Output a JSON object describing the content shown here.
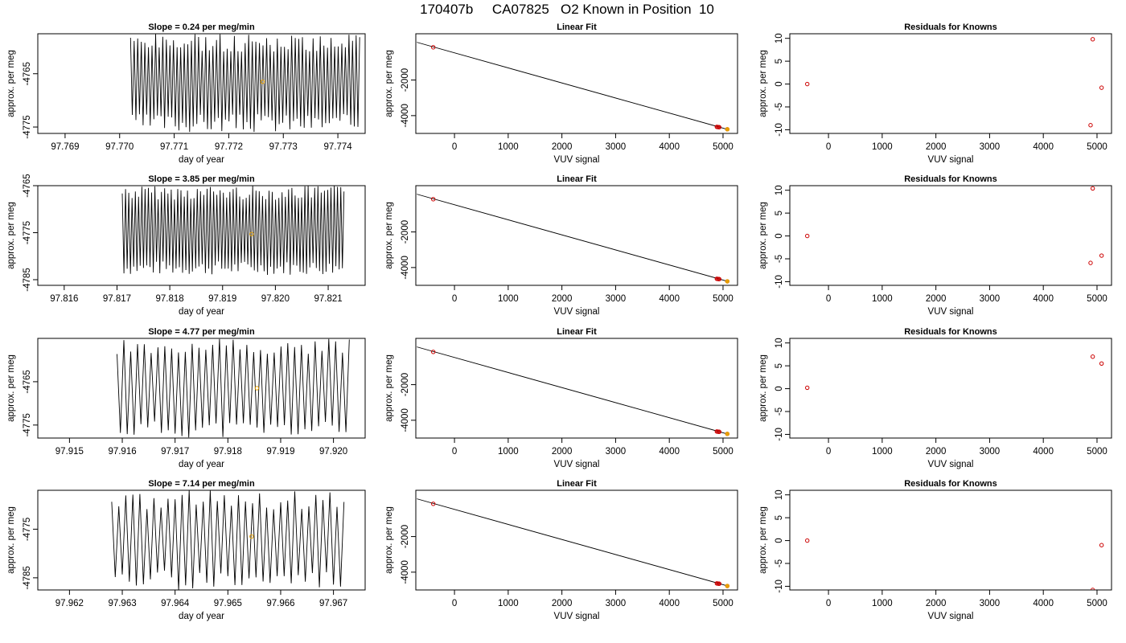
{
  "figure_title": "170407b     CA07825   O2 Known in Position  10",
  "chart_data": [
    {
      "type": "line",
      "row": 0,
      "col": 0,
      "title": "Slope =  0.24  per meg/min",
      "xlabel": "day of year",
      "ylabel": "approx. per meg",
      "xlim": [
        97.7685,
        97.7745
      ],
      "ylim": [
        -4776.2,
        -4757.5
      ],
      "xticks": [
        97.769,
        97.77,
        97.771,
        97.772,
        97.773,
        97.774
      ],
      "xtick_labels": [
        "97.769",
        "97.770",
        "97.771",
        "97.772",
        "97.773",
        "97.774"
      ],
      "yticks": [
        -4765,
        -4775
      ],
      "ytick_labels": [
        "-4765",
        "-4775"
      ],
      "x_start": 97.7702,
      "x_end": 97.7744,
      "cycles": 64,
      "y_high": -4757.5,
      "y_low": -4776,
      "y_spread": 3.5,
      "seed": 3,
      "highlight_point": {
        "x": 97.77262,
        "y": -4766.5,
        "color": "#e69f00"
      }
    },
    {
      "type": "line",
      "row": 1,
      "col": 0,
      "title": "Slope =  3.85  per meg/min",
      "xlabel": "day of year",
      "ylabel": "approx. per meg",
      "xlim": [
        97.8155,
        97.8217
      ],
      "ylim": [
        -4786.2,
        -4765
      ],
      "xticks": [
        97.816,
        97.817,
        97.818,
        97.819,
        97.82,
        97.821
      ],
      "xtick_labels": [
        "97.816",
        "97.817",
        "97.818",
        "97.819",
        "97.820",
        "97.821"
      ],
      "yticks": [
        -4765,
        -4775,
        -4785
      ],
      "ytick_labels": [
        "-4765",
        "-4775",
        "-4785"
      ],
      "x_start": 97.8171,
      "x_end": 97.8213,
      "cycles": 68,
      "y_high": -4765,
      "y_low": -4784,
      "y_spread": 3,
      "seed": 7,
      "highlight_point": {
        "x": 97.81955,
        "y": -4775.3,
        "color": "#e69f00"
      }
    },
    {
      "type": "line",
      "row": 2,
      "col": 0,
      "title": "Slope =  4.77  per meg/min",
      "xlabel": "day of year",
      "ylabel": "approx. per meg",
      "xlim": [
        97.9144,
        97.9206
      ],
      "ylim": [
        -4778,
        -4755
      ],
      "xticks": [
        97.915,
        97.916,
        97.917,
        97.918,
        97.919,
        97.92
      ],
      "xtick_labels": [
        "97.915",
        "97.916",
        "97.917",
        "97.918",
        "97.919",
        "97.920"
      ],
      "yticks": [
        -4765,
        -4775
      ],
      "ytick_labels": [
        "-4765",
        "-4775"
      ],
      "x_start": 97.9159,
      "x_end": 97.9203,
      "cycles": 34,
      "y_high": -4755,
      "y_low": -4778,
      "y_spread": 4,
      "seed": 11,
      "highlight_point": {
        "x": 97.91855,
        "y": -4766.5,
        "color": "#e69f00"
      }
    },
    {
      "type": "line",
      "row": 3,
      "col": 0,
      "title": "Slope =  7.14  per meg/min",
      "xlabel": "day of year",
      "ylabel": "approx. per meg",
      "xlim": [
        97.9614,
        97.9676
      ],
      "ylim": [
        -4787.5,
        -4767
      ],
      "xticks": [
        97.962,
        97.963,
        97.964,
        97.965,
        97.966,
        97.967
      ],
      "xtick_labels": [
        "97.962",
        "97.963",
        "97.964",
        "97.965",
        "97.966",
        "97.967"
      ],
      "yticks": [
        -4775,
        -4785
      ],
      "ytick_labels": [
        "-4775",
        "-4785"
      ],
      "x_start": 97.9628,
      "x_end": 97.9672,
      "cycles": 33,
      "y_high": -4767,
      "y_low": -4787.5,
      "y_spread": 4,
      "seed": 19,
      "highlight_point": {
        "x": 97.96545,
        "y": -4776.5,
        "color": "#e69f00"
      }
    },
    {
      "type": "scatter",
      "row": 0,
      "col": 1,
      "title": "Linear Fit",
      "xlabel": "VUV signal",
      "ylabel": "approx. per meg",
      "xlim": [
        -720,
        5270
      ],
      "ylim": [
        -5000,
        600
      ],
      "xticks": [
        0,
        1000,
        2000,
        3000,
        4000,
        5000
      ],
      "xtick_labels": [
        "0",
        "1000",
        "2000",
        "3000",
        "4000",
        "5000"
      ],
      "yticks": [
        -2000,
        -4000
      ],
      "ytick_labels": [
        "-2000",
        "-4000"
      ],
      "fit_line": [
        [
          -700,
          120
        ],
        [
          5080,
          -4770
        ]
      ],
      "points": [
        [
          -395,
          -160
        ],
        [
          4885,
          -4630
        ],
        [
          4900,
          -4640
        ],
        [
          4920,
          -4645
        ],
        [
          4930,
          -4650
        ],
        [
          5080,
          -4765
        ]
      ],
      "unknown_point": [
        5080,
        -4765
      ],
      "point_color": "#cc0000",
      "unknown_color": "#e69f00"
    },
    {
      "type": "scatter",
      "row": 1,
      "col": 1,
      "title": "Linear Fit",
      "xlabel": "VUV signal",
      "ylabel": "approx. per meg",
      "xlim": [
        -720,
        5270
      ],
      "ylim": [
        -5000,
        600
      ],
      "xticks": [
        0,
        1000,
        2000,
        3000,
        4000,
        5000
      ],
      "xtick_labels": [
        "0",
        "1000",
        "2000",
        "3000",
        "4000",
        "5000"
      ],
      "yticks": [
        -2000,
        -4000
      ],
      "ytick_labels": [
        "-2000",
        "-4000"
      ],
      "fit_line": [
        [
          -700,
          120
        ],
        [
          5080,
          -4770
        ]
      ],
      "points": [
        [
          -395,
          -160
        ],
        [
          4885,
          -4630
        ],
        [
          4900,
          -4640
        ],
        [
          4920,
          -4645
        ],
        [
          4930,
          -4650
        ],
        [
          5080,
          -4775
        ]
      ],
      "unknown_point": [
        5080,
        -4775
      ],
      "point_color": "#cc0000",
      "unknown_color": "#e69f00"
    },
    {
      "type": "scatter",
      "row": 2,
      "col": 1,
      "title": "Linear Fit",
      "xlabel": "VUV signal",
      "ylabel": "approx. per meg",
      "xlim": [
        -720,
        5270
      ],
      "ylim": [
        -5000,
        600
      ],
      "xticks": [
        0,
        1000,
        2000,
        3000,
        4000,
        5000
      ],
      "xtick_labels": [
        "0",
        "1000",
        "2000",
        "3000",
        "4000",
        "5000"
      ],
      "yticks": [
        -2000,
        -4000
      ],
      "ytick_labels": [
        "-2000",
        "-4000"
      ],
      "fit_line": [
        [
          -700,
          120
        ],
        [
          5080,
          -4770
        ]
      ],
      "points": [
        [
          -395,
          -160
        ],
        [
          4885,
          -4630
        ],
        [
          4900,
          -4640
        ],
        [
          4920,
          -4645
        ],
        [
          4930,
          -4650
        ],
        [
          5080,
          -4766
        ]
      ],
      "unknown_point": [
        5080,
        -4766
      ],
      "point_color": "#cc0000",
      "unknown_color": "#e69f00"
    },
    {
      "type": "scatter",
      "row": 3,
      "col": 1,
      "title": "Linear Fit",
      "xlabel": "VUV signal",
      "ylabel": "approx. per meg",
      "xlim": [
        -720,
        5270
      ],
      "ylim": [
        -5000,
        600
      ],
      "xticks": [
        0,
        1000,
        2000,
        3000,
        4000,
        5000
      ],
      "xtick_labels": [
        "0",
        "1000",
        "2000",
        "3000",
        "4000",
        "5000"
      ],
      "yticks": [
        -2000,
        -4000
      ],
      "ytick_labels": [
        "-2000",
        "-4000"
      ],
      "fit_line": [
        [
          -700,
          120
        ],
        [
          5080,
          -4770
        ]
      ],
      "points": [
        [
          -395,
          -160
        ],
        [
          4885,
          -4630
        ],
        [
          4900,
          -4640
        ],
        [
          4920,
          -4645
        ],
        [
          4930,
          -4650
        ],
        [
          5080,
          -4776
        ]
      ],
      "unknown_point": [
        5080,
        -4776
      ],
      "point_color": "#cc0000",
      "unknown_color": "#e69f00"
    },
    {
      "type": "scatter",
      "row": 0,
      "col": 2,
      "title": "Residuals for Knowns",
      "xlabel": "VUV signal",
      "ylabel": "",
      "xlim": [
        -720,
        5270
      ],
      "ylim": [
        -10.8,
        11
      ],
      "xticks": [
        0,
        1000,
        2000,
        3000,
        4000,
        5000
      ],
      "xtick_labels": [
        "0",
        "1000",
        "2000",
        "3000",
        "4000",
        "5000"
      ],
      "yticks": [
        10,
        5,
        0,
        -5,
        -10
      ],
      "ytick_labels": [
        "10",
        "5",
        "0",
        "-5",
        "-10"
      ],
      "points": [
        [
          -395,
          0
        ],
        [
          4920,
          9.8
        ],
        [
          4880,
          -9.0
        ],
        [
          5085,
          -0.8
        ]
      ],
      "point_color": "#cc0000"
    },
    {
      "type": "scatter",
      "row": 1,
      "col": 2,
      "title": "Residuals for Knowns",
      "xlabel": "VUV signal",
      "ylabel": "",
      "xlim": [
        -720,
        5270
      ],
      "ylim": [
        -10.8,
        11
      ],
      "xticks": [
        0,
        1000,
        2000,
        3000,
        4000,
        5000
      ],
      "xtick_labels": [
        "0",
        "1000",
        "2000",
        "3000",
        "4000",
        "5000"
      ],
      "yticks": [
        10,
        5,
        0,
        -5,
        -10
      ],
      "ytick_labels": [
        "10",
        "5",
        "0",
        "-5",
        "-10"
      ],
      "points": [
        [
          -395,
          0
        ],
        [
          4920,
          10.4
        ],
        [
          4880,
          -5.9
        ],
        [
          5085,
          -4.3
        ]
      ],
      "point_color": "#cc0000"
    },
    {
      "type": "scatter",
      "row": 2,
      "col": 2,
      "title": "Residuals for Knowns",
      "xlabel": "VUV signal",
      "ylabel": "",
      "xlim": [
        -720,
        5270
      ],
      "ylim": [
        -10.8,
        11
      ],
      "xticks": [
        0,
        1000,
        2000,
        3000,
        4000,
        5000
      ],
      "xtick_labels": [
        "0",
        "1000",
        "2000",
        "3000",
        "4000",
        "5000"
      ],
      "yticks": [
        10,
        5,
        0,
        -5,
        -10
      ],
      "ytick_labels": [
        "10",
        "5",
        "0",
        "-5",
        "-10"
      ],
      "points": [
        [
          -395,
          0.2
        ],
        [
          4920,
          7.0
        ],
        [
          5085,
          5.5
        ]
      ],
      "point_color": "#cc0000"
    },
    {
      "type": "scatter",
      "row": 3,
      "col": 2,
      "title": "Residuals for Knowns",
      "xlabel": "VUV signal",
      "ylabel": "",
      "xlim": [
        -720,
        5270
      ],
      "ylim": [
        -10.8,
        11
      ],
      "xticks": [
        0,
        1000,
        2000,
        3000,
        4000,
        5000
      ],
      "xtick_labels": [
        "0",
        "1000",
        "2000",
        "3000",
        "4000",
        "5000"
      ],
      "yticks": [
        10,
        5,
        0,
        -5,
        -10
      ],
      "ytick_labels": [
        "10",
        "5",
        "0",
        "-5",
        "-10"
      ],
      "points": [
        [
          -395,
          0
        ],
        [
          5085,
          -1.0
        ],
        [
          4920,
          -10.8
        ]
      ],
      "point_color": "#cc0000"
    }
  ]
}
